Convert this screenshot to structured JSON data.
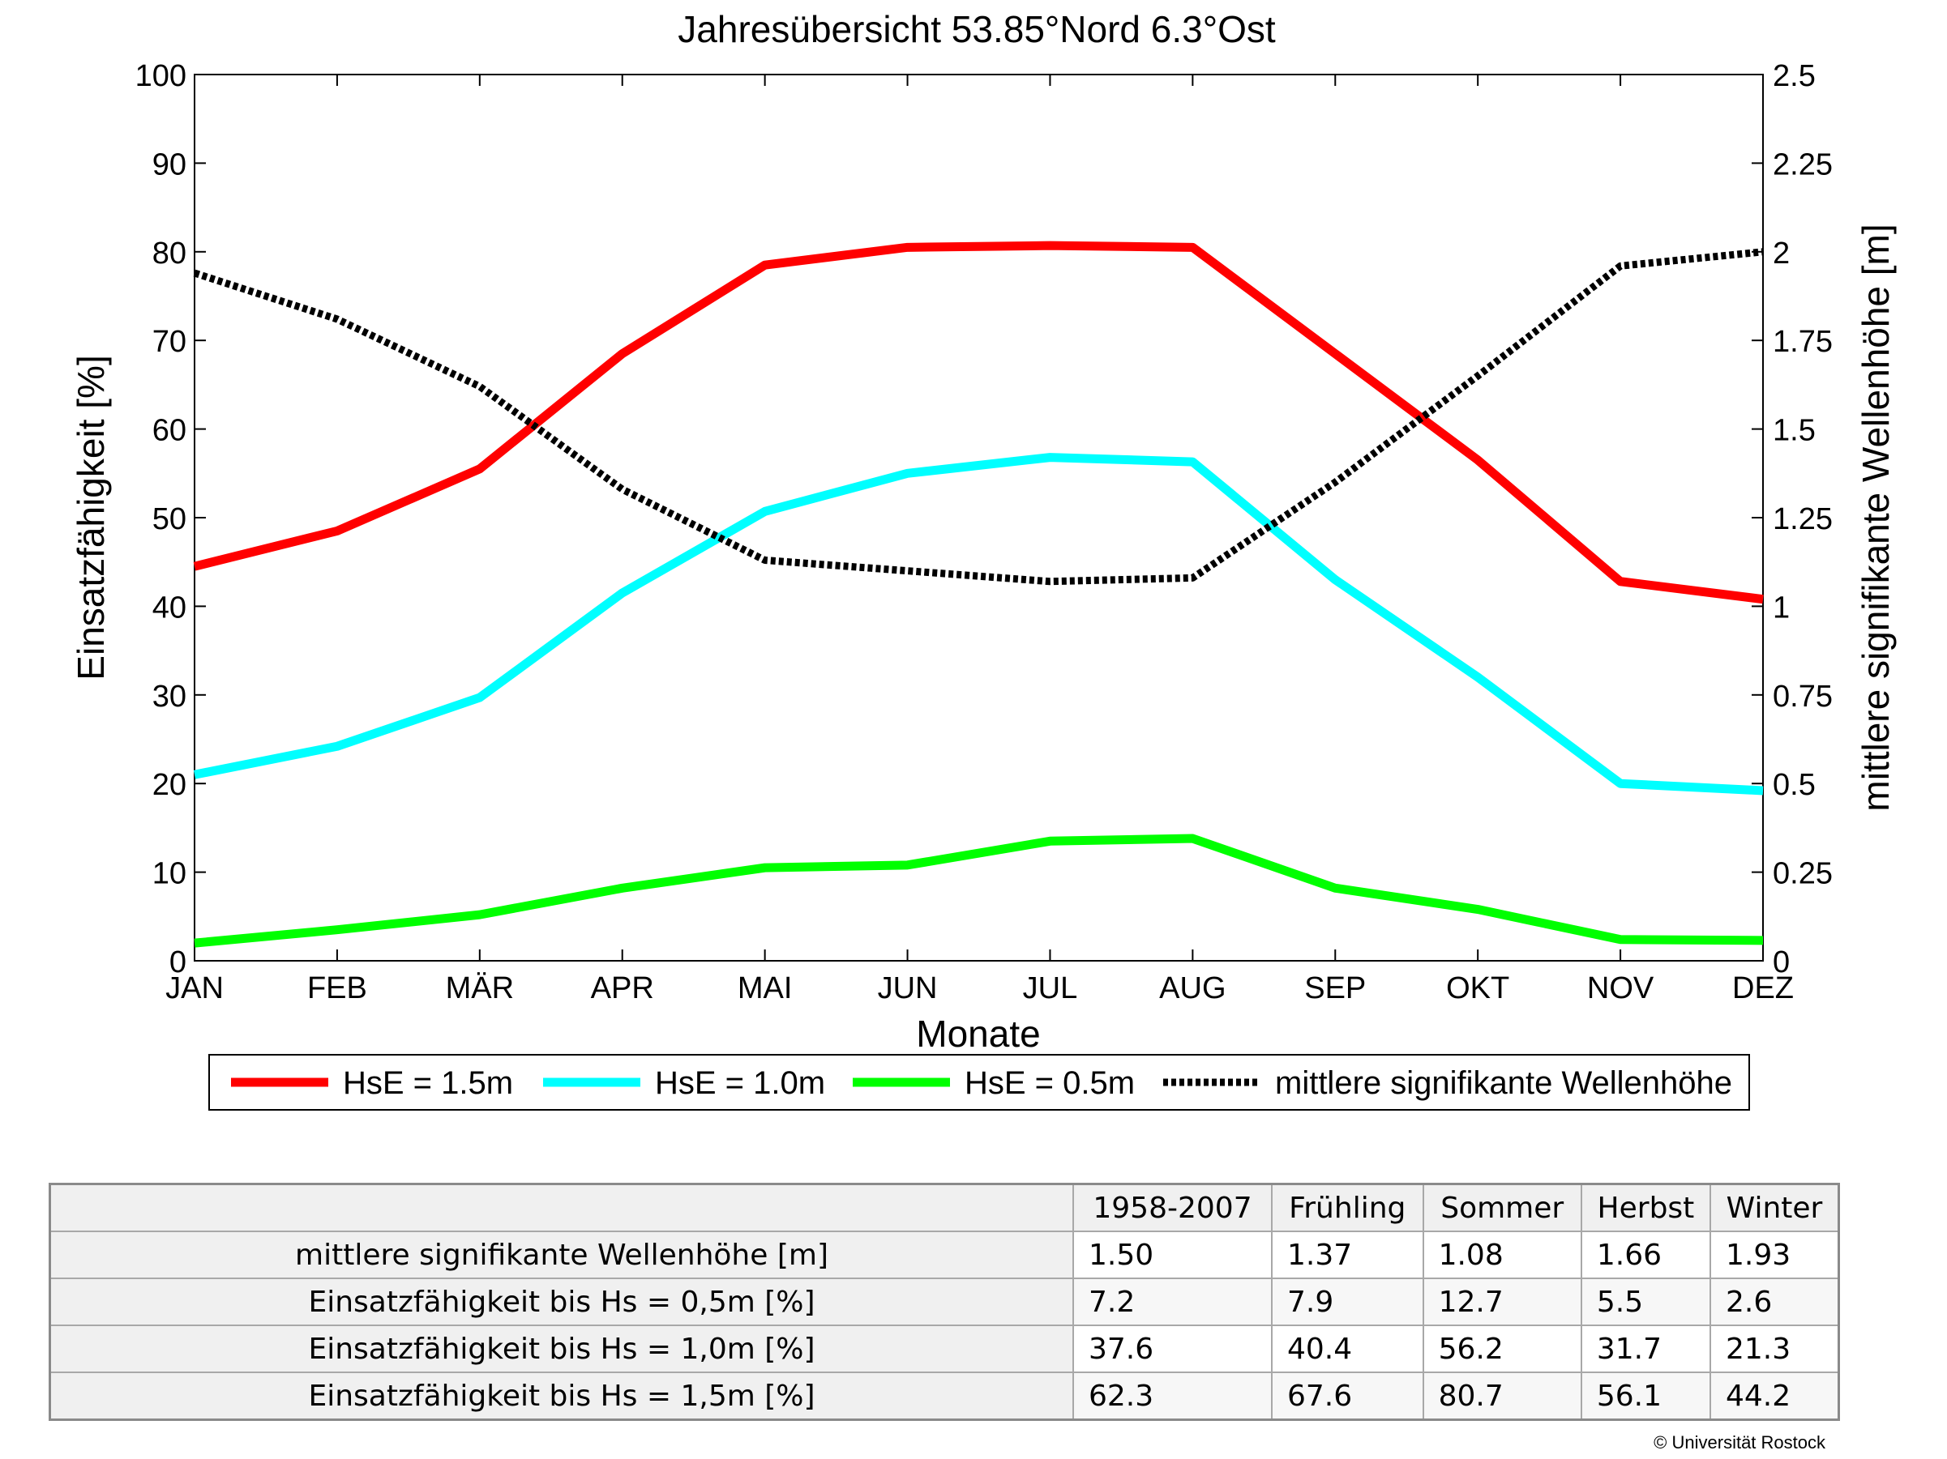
{
  "chart_data": {
    "type": "line",
    "title": "Jahresübersicht  53.85°Nord  6.3°Ost",
    "xlabel": "Monate",
    "ylabel": "Einsatzfähigkeit [%]",
    "ylabel_right": "mittlere signifikante Wellenhöhe [m]",
    "categories": [
      "JAN",
      "FEB",
      "MÄR",
      "APR",
      "MAI",
      "JUN",
      "JUL",
      "AUG",
      "SEP",
      "OKT",
      "NOV",
      "DEZ"
    ],
    "ylim": [
      0,
      100
    ],
    "ylim_right": [
      0,
      2.5
    ],
    "yticks": [
      "0",
      "10",
      "20",
      "30",
      "40",
      "50",
      "60",
      "70",
      "80",
      "90",
      "100"
    ],
    "yticks_right": [
      "0",
      "0.25",
      "0.5",
      "0.75",
      "1",
      "1.25",
      "1.5",
      "1.75",
      "2",
      "2.25",
      "2.5"
    ],
    "grid": false,
    "legend_position": "bottom",
    "series": [
      {
        "name": "HsE = 1.5m",
        "axis": "left",
        "color": "#ff0000",
        "style": "solid",
        "values": [
          44.5,
          48.5,
          55.5,
          68.5,
          78.5,
          80.5,
          80.7,
          80.5,
          68.5,
          56.5,
          42.8,
          40.8
        ]
      },
      {
        "name": "HsE = 1.0m",
        "axis": "left",
        "color": "#00ffff",
        "style": "solid",
        "values": [
          21.0,
          24.2,
          29.7,
          41.5,
          50.7,
          55.0,
          56.8,
          56.3,
          43.0,
          32.0,
          20.0,
          19.2
        ]
      },
      {
        "name": "HsE = 0.5m",
        "axis": "left",
        "color": "#00ff00",
        "style": "solid",
        "values": [
          2.0,
          3.5,
          5.2,
          8.2,
          10.5,
          10.8,
          13.5,
          13.8,
          8.2,
          5.8,
          2.4,
          2.3
        ]
      },
      {
        "name": "mittlere signifikante Wellenhöhe",
        "axis": "right",
        "color": "#000000",
        "style": "dotted",
        "values": [
          1.94,
          1.81,
          1.62,
          1.33,
          1.13,
          1.1,
          1.07,
          1.08,
          1.35,
          1.65,
          1.96,
          2.0
        ]
      }
    ]
  },
  "table": {
    "headers": [
      "1958-2007",
      "Frühling",
      "Sommer",
      "Herbst",
      "Winter"
    ],
    "rows": [
      {
        "label": "mittlere signifikante Wellenhöhe [m]",
        "values": [
          "1.50",
          "1.37",
          "1.08",
          "1.66",
          "1.93"
        ]
      },
      {
        "label": "Einsatzfähigkeit bis Hs = 0,5m [%]",
        "values": [
          "7.2",
          "7.9",
          "12.7",
          "5.5",
          "2.6"
        ]
      },
      {
        "label": "Einsatzfähigkeit bis Hs = 1,0m [%]",
        "values": [
          "37.6",
          "40.4",
          "56.2",
          "31.7",
          "21.3"
        ]
      },
      {
        "label": "Einsatzfähigkeit bis Hs = 1,5m [%]",
        "values": [
          "62.3",
          "67.6",
          "80.7",
          "56.1",
          "44.2"
        ]
      }
    ]
  },
  "copyright": "© Universität Rostock"
}
